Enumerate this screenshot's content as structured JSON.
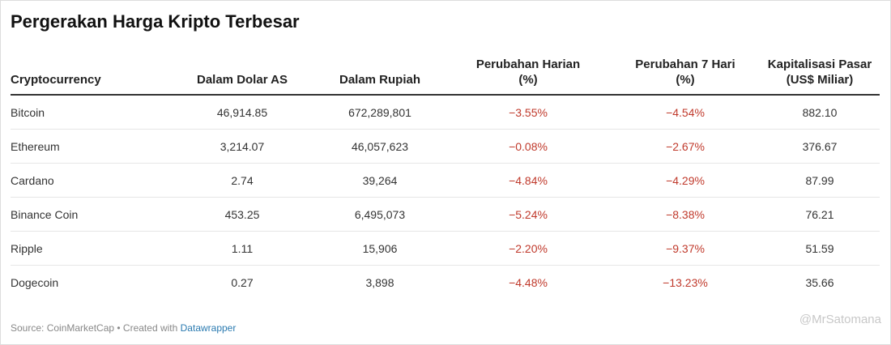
{
  "header": {
    "title": "Pergerakan Harga Kripto Terbesar"
  },
  "table": {
    "columns": [
      "Cryptocurrency",
      "Dalam Dolar AS",
      "Dalam Rupiah",
      "Perubahan Harian\n(%)",
      "Perubahan 7 Hari\n(%)",
      "Kapitalisasi Pasar\n(US$ Miliar)"
    ],
    "rows": [
      [
        "Bitcoin",
        "46,914.85",
        "672,289,801",
        "−3.55%",
        "−4.54%",
        "882.10"
      ],
      [
        "Ethereum",
        "3,214.07",
        "46,057,623",
        "−0.08%",
        "−2.67%",
        "376.67"
      ],
      [
        "Cardano",
        "2.74",
        "39,264",
        "−4.84%",
        "−4.29%",
        "87.99"
      ],
      [
        "Binance Coin",
        "453.25",
        "6,495,073",
        "−5.24%",
        "−8.38%",
        "76.21"
      ],
      [
        "Ripple",
        "1.11",
        "15,906",
        "−2.20%",
        "−9.37%",
        "51.59"
      ],
      [
        "Dogecoin",
        "0.27",
        "3,898",
        "−4.48%",
        "−13.23%",
        "35.66"
      ]
    ]
  },
  "footer": {
    "source": "Source: CoinMarketCap • Created with",
    "link": "Datawrapper"
  },
  "watermark": "@MrSatomana"
}
